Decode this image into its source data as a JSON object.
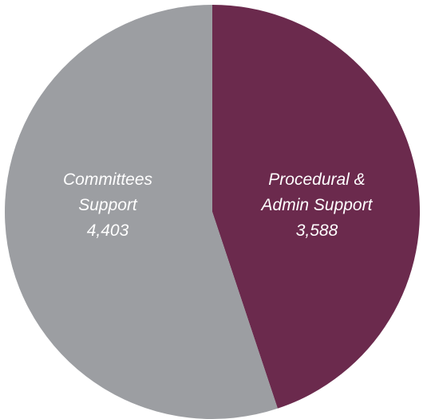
{
  "chart_data": {
    "type": "pie",
    "slices": [
      {
        "name_lines": [
          "Procedural &",
          "Admin Support"
        ],
        "value": 3588,
        "value_label": "3,588",
        "color": "#6b2a4d"
      },
      {
        "name_lines": [
          "Committees",
          "Support"
        ],
        "value": 4403,
        "value_label": "4,403",
        "color": "#9c9ea2"
      }
    ],
    "start_angle": "12 o'clock",
    "direction": "clockwise",
    "legend": "none",
    "labels": "inside slices"
  }
}
